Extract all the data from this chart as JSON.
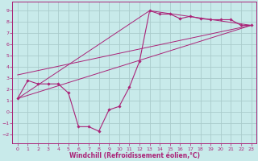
{
  "background_color": "#c8eaea",
  "grid_color": "#aacccc",
  "line_color": "#aa2277",
  "marker_color": "#aa2277",
  "xlabel": "Windchill (Refroidissement éolien,°C)",
  "xlim": [
    -0.5,
    23.5
  ],
  "ylim": [
    -2.8,
    9.8
  ],
  "xticks": [
    0,
    1,
    2,
    3,
    4,
    5,
    6,
    7,
    8,
    9,
    10,
    11,
    12,
    13,
    14,
    15,
    16,
    17,
    18,
    19,
    20,
    21,
    22,
    23
  ],
  "yticks": [
    -2,
    -1,
    0,
    1,
    2,
    3,
    4,
    5,
    6,
    7,
    8,
    9
  ],
  "series1_x": [
    0,
    1,
    2,
    3,
    4,
    5,
    6,
    7,
    8,
    9,
    10,
    11,
    12,
    13,
    14,
    15,
    16,
    17,
    18,
    19,
    20,
    21,
    22,
    23
  ],
  "series1_y": [
    1.2,
    2.8,
    2.5,
    2.5,
    2.5,
    1.7,
    -1.3,
    -1.3,
    -1.7,
    0.2,
    0.5,
    2.2,
    4.5,
    9.0,
    8.7,
    8.7,
    8.3,
    8.5,
    8.3,
    8.2,
    8.2,
    8.2,
    7.7,
    7.7
  ],
  "line1_x": [
    0,
    23
  ],
  "line1_y": [
    1.2,
    7.7
  ],
  "line2_x": [
    0,
    13,
    23
  ],
  "line2_y": [
    1.2,
    9.0,
    7.7
  ],
  "line3_x": [
    0,
    23
  ],
  "line3_y": [
    3.3,
    7.7
  ],
  "tick_fontsize": 4.5,
  "xlabel_fontsize": 5.5
}
